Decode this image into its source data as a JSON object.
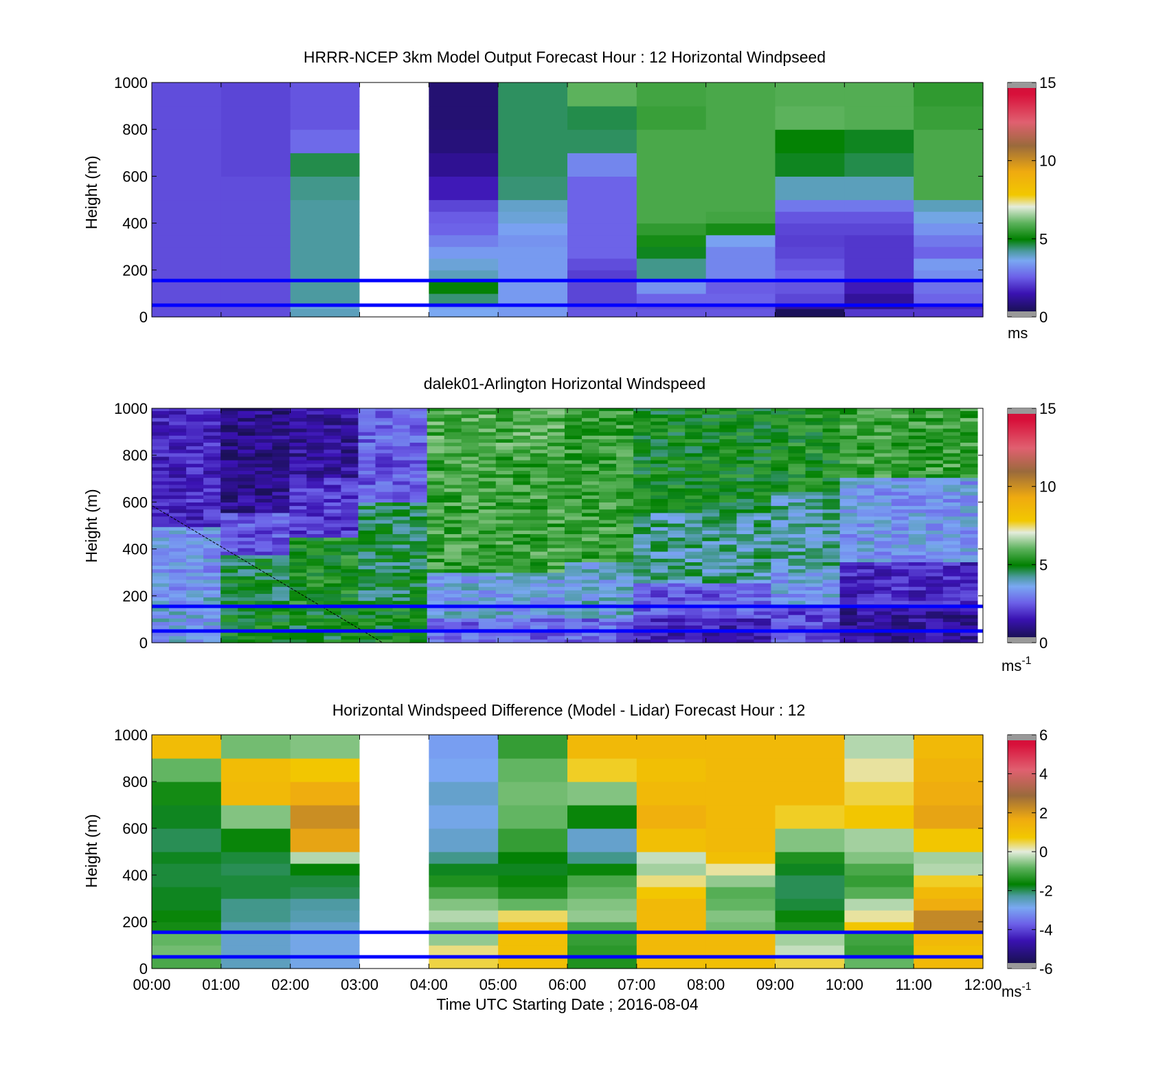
{
  "figure": {
    "xlabel": "Time UTC  Starting Date ; 2016-08-04",
    "time_ticks": [
      "00:00",
      "01:00",
      "02:00",
      "03:00",
      "04:00",
      "05:00",
      "06:00",
      "07:00",
      "08:00",
      "09:00",
      "10:00",
      "11:00",
      "12:00"
    ],
    "height_ticks": [
      "0",
      "200",
      "400",
      "600",
      "800",
      "1000"
    ],
    "reference_lines_m": [
      50,
      155
    ],
    "reference_line_color": "#0000ff",
    "missing_color": "#ffffff",
    "out_of_range_color": "#999999"
  },
  "chart_data": [
    {
      "type": "heatmap",
      "title": "HRRR-NCEP 3km Model Output   Forecast Hour : 12 Horizontal Windpseed",
      "ylabel": "Height (m)",
      "xlim": [
        "00:00",
        "12:00"
      ],
      "ylim": [
        0,
        1000
      ],
      "clim": [
        0,
        15
      ],
      "colorbar_ticks": [
        "0",
        "5",
        "10",
        "15"
      ],
      "colorbar_unit": "ms",
      "colorbar_unit_sup": "",
      "colormap": "windspeed",
      "columns": [
        "00:00",
        "01:00",
        "02:00",
        "03:00",
        "04:00",
        "05:00",
        "06:00",
        "07:00",
        "08:00",
        "09:00",
        "10:00",
        "11:00"
      ],
      "level_tops_m": [
        35,
        50,
        100,
        150,
        200,
        250,
        300,
        350,
        400,
        450,
        500,
        600,
        700,
        800,
        900,
        1000
      ],
      "values": [
        [
          2.3,
          2.3,
          4.0,
          null,
          3.6,
          3.4,
          2.4,
          2.4,
          2.4,
          0.4,
          2.0,
          2.0
        ],
        [
          2.3,
          2.3,
          3.8,
          null,
          3.5,
          3.4,
          2.4,
          2.3,
          2.3,
          1.2,
          1.0,
          1.8
        ],
        [
          2.3,
          2.3,
          4.2,
          null,
          4.4,
          3.4,
          2.2,
          2.6,
          2.6,
          2.2,
          1.2,
          2.6
        ],
        [
          2.3,
          2.3,
          4.2,
          null,
          5.0,
          3.4,
          2.2,
          3.3,
          2.5,
          2.4,
          1.6,
          2.8
        ],
        [
          2.3,
          2.3,
          4.2,
          null,
          4.0,
          3.4,
          2.1,
          4.3,
          3.1,
          2.6,
          2.0,
          3.2
        ],
        [
          2.3,
          2.3,
          4.2,
          null,
          3.8,
          3.4,
          2.3,
          4.3,
          3.1,
          2.4,
          2.0,
          3.4
        ],
        [
          2.3,
          2.3,
          4.2,
          null,
          3.4,
          3.4,
          2.6,
          4.8,
          3.1,
          2.2,
          2.0,
          2.6
        ],
        [
          2.3,
          2.3,
          4.2,
          null,
          3.0,
          3.3,
          2.6,
          5.2,
          3.5,
          2.1,
          2.0,
          2.9
        ],
        [
          2.3,
          2.3,
          4.2,
          null,
          2.6,
          3.5,
          2.6,
          5.5,
          5.2,
          2.2,
          2.2,
          3.3
        ],
        [
          2.3,
          2.3,
          4.2,
          null,
          2.5,
          3.8,
          2.6,
          5.8,
          5.7,
          2.4,
          2.4,
          3.7
        ],
        [
          2.3,
          2.3,
          4.2,
          null,
          2.2,
          3.9,
          2.6,
          5.8,
          5.8,
          2.9,
          2.9,
          4.0
        ],
        [
          2.3,
          2.3,
          4.3,
          null,
          1.6,
          4.4,
          2.6,
          5.8,
          5.8,
          4.0,
          4.0,
          5.8
        ],
        [
          2.3,
          2.2,
          4.6,
          null,
          1.1,
          4.5,
          3.1,
          5.8,
          5.8,
          4.8,
          4.6,
          5.8
        ],
        [
          2.3,
          2.2,
          2.7,
          null,
          0.8,
          4.5,
          4.5,
          5.8,
          5.8,
          5.0,
          4.8,
          5.8
        ],
        [
          2.3,
          2.2,
          2.4,
          null,
          0.7,
          4.5,
          4.6,
          5.6,
          5.8,
          6.0,
          5.9,
          5.6
        ],
        [
          2.3,
          2.2,
          2.4,
          null,
          0.7,
          4.5,
          6.0,
          5.7,
          5.8,
          5.9,
          5.9,
          5.5
        ]
      ]
    },
    {
      "type": "heatmap",
      "title": "dalek01-Arlington  Horizontal Windspeed",
      "ylabel": "Height (m)",
      "xlim": [
        "00:00",
        "12:00"
      ],
      "ylim": [
        0,
        1000
      ],
      "clim": [
        0,
        15
      ],
      "colorbar_ticks": [
        "0",
        "5",
        "10",
        "15"
      ],
      "colorbar_unit": "ms",
      "colorbar_unit_sup": "-1",
      "colormap": "windspeed",
      "grid_columns": 48,
      "grid_column_minutes": 15,
      "data_top_m": 1000,
      "level_height_m": 15,
      "note": "Dense lidar field (48 time columns x 67 levels, 0-1000 m); approximate speed in m/s by time (hours) and height (m).",
      "speed_profile": [
        {
          "from_h": 0,
          "to_h": 1.0,
          "layers": [
            [
              0,
              200,
              3.6
            ],
            [
              200,
              500,
              3.3
            ],
            [
              500,
              1000,
              1.8
            ]
          ]
        },
        {
          "from_h": 1.0,
          "to_h": 2.0,
          "layers": [
            [
              0,
              150,
              5.0
            ],
            [
              150,
              380,
              4.7
            ],
            [
              380,
              550,
              2.4
            ],
            [
              550,
              1000,
              1.0
            ]
          ]
        },
        {
          "from_h": 2.0,
          "to_h": 3.0,
          "layers": [
            [
              0,
              150,
              4.9
            ],
            [
              150,
              450,
              5.2
            ],
            [
              450,
              700,
              2.0
            ],
            [
              700,
              1000,
              1.2
            ]
          ]
        },
        {
          "from_h": 3.0,
          "to_h": 4.0,
          "layers": [
            [
              0,
              150,
              5.0
            ],
            [
              150,
              600,
              4.6
            ],
            [
              600,
              800,
              2.4
            ],
            [
              800,
              1000,
              2.6
            ]
          ]
        },
        {
          "from_h": 4.0,
          "to_h": 6.0,
          "layers": [
            [
              0,
              100,
              2.6
            ],
            [
              100,
              300,
              3.6
            ],
            [
              300,
              800,
              5.6
            ],
            [
              800,
              1000,
              5.8
            ]
          ]
        },
        {
          "from_h": 6.0,
          "to_h": 7.0,
          "layers": [
            [
              0,
              100,
              2.6
            ],
            [
              100,
              350,
              3.8
            ],
            [
              350,
              700,
              5.6
            ],
            [
              700,
              1000,
              5.5
            ]
          ]
        },
        {
          "from_h": 7.0,
          "to_h": 9.0,
          "layers": [
            [
              0,
              100,
              1.6
            ],
            [
              100,
              250,
              2.5
            ],
            [
              250,
              550,
              4.2
            ],
            [
              550,
              1000,
              5.0
            ]
          ]
        },
        {
          "from_h": 9.0,
          "to_h": 10.0,
          "layers": [
            [
              0,
              150,
              2.2
            ],
            [
              150,
              300,
              3.5
            ],
            [
              300,
              650,
              4.1
            ],
            [
              650,
              1000,
              5.2
            ]
          ]
        },
        {
          "from_h": 10.0,
          "to_h": 12.0,
          "layers": [
            [
              0,
              150,
              1.2
            ],
            [
              150,
              350,
              1.8
            ],
            [
              350,
              700,
              3.4
            ],
            [
              700,
              1000,
              5.6
            ]
          ]
        }
      ]
    },
    {
      "type": "heatmap",
      "title": "Horizontal Windspeed Difference (Model - Lidar) Forecast Hour : 12",
      "ylabel": "Height (m)",
      "xlim": [
        "00:00",
        "12:00"
      ],
      "ylim": [
        0,
        1000
      ],
      "clim": [
        -6,
        6
      ],
      "colorbar_ticks": [
        "-6",
        "-4",
        "-2",
        "0",
        "2",
        "4",
        "6"
      ],
      "colorbar_unit": "ms",
      "colorbar_unit_sup": "-1",
      "colormap": "difference",
      "columns": [
        "00:00",
        "01:00",
        "02:00",
        "03:00",
        "04:00",
        "05:00",
        "06:00",
        "07:00",
        "08:00",
        "09:00",
        "10:00",
        "11:00"
      ],
      "level_tops_m": [
        35,
        50,
        100,
        150,
        200,
        250,
        300,
        350,
        400,
        450,
        500,
        600,
        700,
        800,
        900,
        1000
      ],
      "values": [
        [
          -1.0,
          -2.5,
          -2.8,
          null,
          0.5,
          1.0,
          -1.4,
          1.0,
          1.0,
          0.5,
          -0.8,
          1.2
        ],
        [
          -1.0,
          -2.5,
          -2.8,
          null,
          0.5,
          1.0,
          -1.4,
          1.0,
          1.0,
          0.5,
          -0.8,
          1.2
        ],
        [
          -0.7,
          -2.6,
          -2.8,
          null,
          0.3,
          1.0,
          -1.3,
          1.2,
          1.2,
          -0.2,
          -1.2,
          1.0
        ],
        [
          -0.8,
          -2.6,
          -2.8,
          null,
          -0.5,
          1.0,
          -1.2,
          1.2,
          1.2,
          -0.4,
          -1.1,
          1.2
        ],
        [
          -1.5,
          -2.4,
          -2.6,
          null,
          -0.6,
          1.2,
          -1.0,
          1.2,
          -0.7,
          -1.4,
          0.8,
          2.3
        ],
        [
          -1.6,
          -2.2,
          -2.4,
          null,
          -0.3,
          0.4,
          -0.5,
          1.2,
          -0.6,
          -1.6,
          0.2,
          2.3
        ],
        [
          -1.8,
          -2.2,
          -2.3,
          null,
          -0.6,
          -0.8,
          -0.6,
          1.2,
          -0.8,
          -1.9,
          -0.3,
          1.6
        ],
        [
          -1.8,
          -1.9,
          -2.0,
          null,
          -1.0,
          -1.4,
          -0.8,
          0.8,
          -0.9,
          -2.0,
          -0.9,
          1.2
        ],
        [
          -1.9,
          -1.9,
          -1.9,
          null,
          -1.4,
          -1.6,
          -1.0,
          0.3,
          -0.5,
          -2.0,
          -1.2,
          0.6
        ],
        [
          -1.9,
          -2.0,
          -1.7,
          null,
          -1.8,
          -1.8,
          -1.6,
          -0.4,
          0.2,
          -1.8,
          -1.0,
          -0.3
        ],
        [
          -1.8,
          -1.9,
          -0.3,
          null,
          -2.2,
          -1.7,
          -2.2,
          -0.2,
          1.0,
          -1.4,
          -0.6,
          -0.4
        ],
        [
          -2.0,
          -1.6,
          1.8,
          null,
          -2.6,
          -1.2,
          -2.6,
          1.0,
          1.2,
          -0.6,
          -0.4,
          0.8
        ],
        [
          -1.8,
          -0.6,
          2.2,
          null,
          -2.8,
          -0.8,
          -1.6,
          1.5,
          1.2,
          0.6,
          0.8,
          1.8
        ],
        [
          -1.5,
          1.2,
          1.6,
          null,
          -2.6,
          -0.7,
          -0.6,
          1.2,
          1.2,
          1.2,
          0.5,
          1.6
        ],
        [
          -0.8,
          1.1,
          0.8,
          null,
          -2.9,
          -0.8,
          0.6,
          1.0,
          1.2,
          1.2,
          0.2,
          1.4
        ],
        [
          1.1,
          -0.7,
          -0.6,
          null,
          -3.0,
          -1.2,
          1.2,
          1.2,
          1.2,
          1.2,
          -0.3,
          1.2
        ]
      ]
    }
  ]
}
